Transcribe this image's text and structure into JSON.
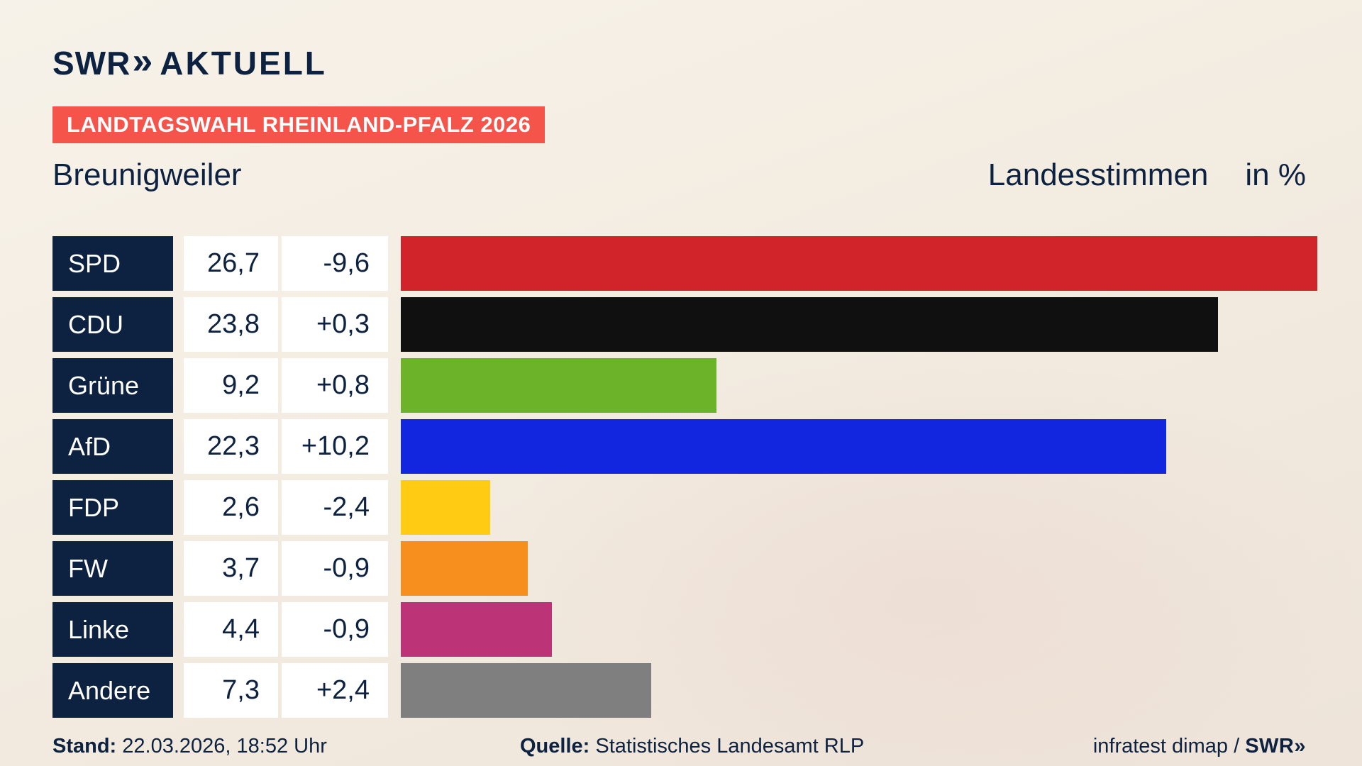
{
  "header": {
    "brand_swr": "SWR",
    "brand_chevrons": "»",
    "brand_aktuell": "AKTUELL",
    "badge": "LANDTAGSWAHL RHEINLAND-PFALZ 2026",
    "location": "Breunigweiler",
    "measure": "Landesstimmen",
    "unit": "in %"
  },
  "chart_data": {
    "type": "bar",
    "orientation": "horizontal",
    "title": "Landtagswahl Rheinland-Pfalz 2026 – Breunigweiler – Landesstimmen in %",
    "categories": [
      "SPD",
      "CDU",
      "Grüne",
      "AfD",
      "FDP",
      "FW",
      "Linke",
      "Andere"
    ],
    "values": [
      26.7,
      23.8,
      9.2,
      22.3,
      2.6,
      3.7,
      4.4,
      7.3
    ],
    "value_labels": [
      "26,7",
      "23,8",
      "9,2",
      "22,3",
      "2,6",
      "3,7",
      "4,4",
      "7,3"
    ],
    "changes": [
      "-9,6",
      "+0,3",
      "+0,8",
      "+10,2",
      "-2,4",
      "-0,9",
      "-0,9",
      "+2,4"
    ],
    "bar_colors": [
      "#d1232a",
      "#101010",
      "#6db32a",
      "#1226df",
      "#ffcc13",
      "#f78f1e",
      "#bd3377",
      "#7f7f7f"
    ],
    "xlim": [
      0,
      27.5
    ],
    "legend": "none",
    "grid": false
  },
  "footer": {
    "stand_label": "Stand:",
    "stand_value": " 22.03.2026, 18:52 Uhr",
    "quelle_label": "Quelle:",
    "quelle_value": " Statistisches Landesamt RLP",
    "credit_text": "infratest dimap / ",
    "credit_brand": "SWR»"
  }
}
